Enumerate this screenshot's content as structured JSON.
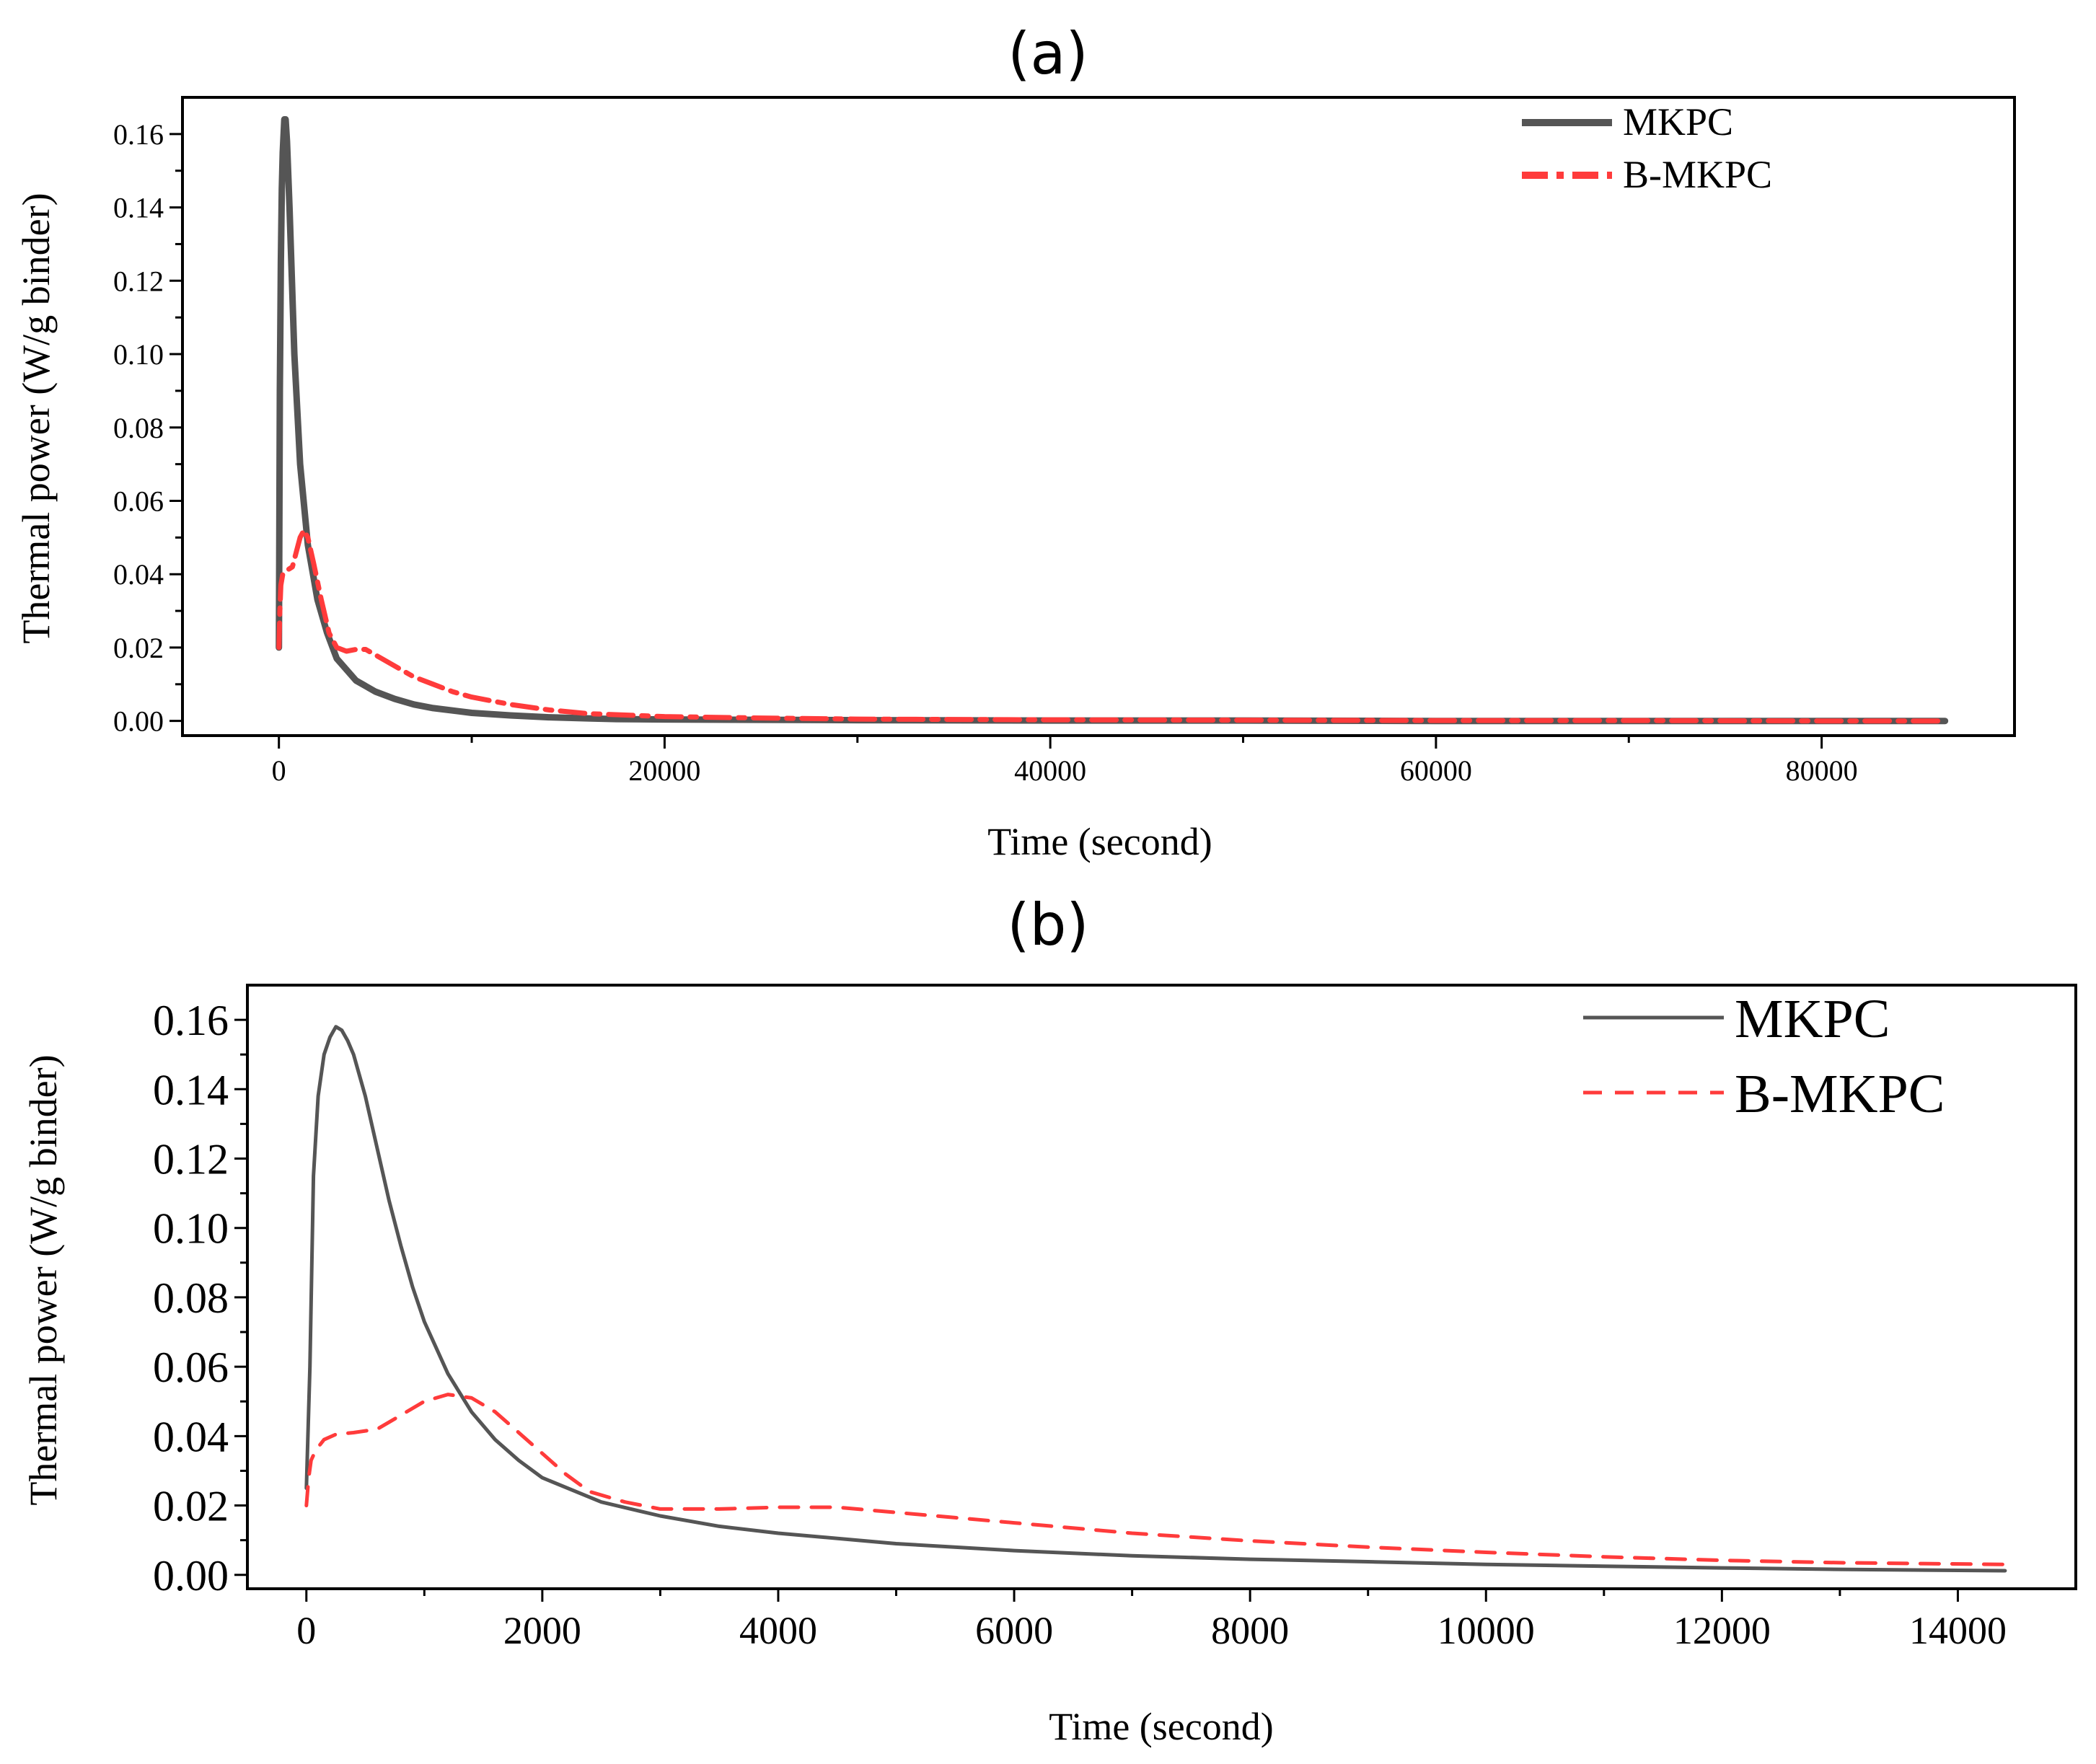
{
  "chart_data": [
    {
      "panel": "(a)",
      "type": "line",
      "title": "(a)",
      "xlabel": "Time (second)",
      "ylabel": "Thermal power (W/g binder)",
      "xlim": [
        -5000,
        90000
      ],
      "ylim": [
        -0.004,
        0.17
      ],
      "xticks": [
        0,
        20000,
        40000,
        60000,
        80000
      ],
      "xtick_labels": [
        "0",
        "20000",
        "40000",
        "60000",
        "80000"
      ],
      "yticks": [
        0.0,
        0.02,
        0.04,
        0.06,
        0.08,
        0.1,
        0.12,
        0.14,
        0.16
      ],
      "ytick_labels": [
        "0.00",
        "0.02",
        "0.04",
        "0.06",
        "0.08",
        "0.10",
        "0.12",
        "0.14",
        "0.16"
      ],
      "legend_position": "top-right",
      "grid": false,
      "series": [
        {
          "name": "MKPC",
          "color": "#555555",
          "style": "solid",
          "x": [
            0,
            50,
            100,
            150,
            200,
            280,
            350,
            420,
            550,
            800,
            1100,
            1500,
            2000,
            2500,
            3000,
            4000,
            5000,
            6000,
            7000,
            8000,
            10000,
            12000,
            14000,
            16000,
            17500,
            20000,
            25000,
            30000,
            40000,
            50000,
            60000,
            70000,
            80000,
            86400
          ],
          "y": [
            0.02,
            0.09,
            0.125,
            0.145,
            0.155,
            0.164,
            0.164,
            0.158,
            0.14,
            0.1,
            0.07,
            0.048,
            0.033,
            0.024,
            0.017,
            0.011,
            0.008,
            0.006,
            0.0045,
            0.0035,
            0.0022,
            0.0015,
            0.001,
            0.0007,
            0.0005,
            0.0004,
            0.0003,
            0.0002,
            0.0001,
            0.0001,
            0.0,
            0.0,
            0.0,
            0.0
          ]
        },
        {
          "name": "B-MKPC",
          "color": "#ff3b3b",
          "style": "dashdot",
          "x": [
            0,
            50,
            100,
            200,
            400,
            700,
            900,
            1100,
            1300,
            1500,
            1800,
            2200,
            2600,
            3000,
            3500,
            4000,
            4500,
            5000,
            6000,
            7000,
            8000,
            9000,
            10000,
            12000,
            14000,
            16000,
            20000,
            25000,
            30000,
            40000,
            50000,
            60000,
            70000,
            80000,
            86400
          ],
          "y": [
            0.02,
            0.03,
            0.037,
            0.04,
            0.041,
            0.042,
            0.046,
            0.05,
            0.052,
            0.05,
            0.043,
            0.033,
            0.024,
            0.02,
            0.019,
            0.0195,
            0.0195,
            0.018,
            0.015,
            0.012,
            0.01,
            0.008,
            0.0065,
            0.0045,
            0.003,
            0.002,
            0.0012,
            0.0008,
            0.0005,
            0.0003,
            0.0002,
            0.0001,
            0.0001,
            0.0,
            0.0
          ]
        }
      ]
    },
    {
      "panel": "(b)",
      "type": "line",
      "title": "(b)",
      "xlabel": "Time (second)",
      "ylabel": "Thermal power (W/g binder)",
      "xlim": [
        -500,
        15000
      ],
      "ylim": [
        -0.004,
        0.17
      ],
      "xticks": [
        0,
        2000,
        4000,
        6000,
        8000,
        10000,
        12000,
        14000
      ],
      "xtick_labels": [
        "0",
        "2000",
        "4000",
        "6000",
        "8000",
        "10000",
        "12000",
        "14000"
      ],
      "yticks": [
        0.0,
        0.02,
        0.04,
        0.06,
        0.08,
        0.1,
        0.12,
        0.14,
        0.16
      ],
      "ytick_labels": [
        "0.00",
        "0.02",
        "0.04",
        "0.06",
        "0.08",
        "0.10",
        "0.12",
        "0.14",
        "0.16"
      ],
      "legend_position": "top-right",
      "grid": false,
      "series": [
        {
          "name": "MKPC",
          "color": "#555555",
          "style": "solid",
          "x": [
            0,
            30,
            60,
            100,
            150,
            200,
            250,
            300,
            350,
            400,
            500,
            600,
            700,
            800,
            900,
            1000,
            1200,
            1400,
            1600,
            1800,
            2000,
            2500,
            3000,
            3500,
            4000,
            5000,
            6000,
            7000,
            8000,
            9000,
            10000,
            11000,
            12000,
            13000,
            14400
          ],
          "y": [
            0.025,
            0.06,
            0.115,
            0.138,
            0.15,
            0.155,
            0.158,
            0.157,
            0.154,
            0.15,
            0.138,
            0.123,
            0.108,
            0.095,
            0.083,
            0.073,
            0.058,
            0.047,
            0.039,
            0.033,
            0.028,
            0.021,
            0.017,
            0.014,
            0.012,
            0.009,
            0.007,
            0.0055,
            0.0045,
            0.0038,
            0.003,
            0.0025,
            0.002,
            0.0016,
            0.0012
          ]
        },
        {
          "name": "B-MKPC",
          "color": "#ff3b3b",
          "style": "dashed",
          "x": [
            0,
            20,
            40,
            80,
            150,
            250,
            400,
            600,
            800,
            1000,
            1200,
            1400,
            1600,
            1800,
            2000,
            2200,
            2400,
            2700,
            3000,
            3500,
            4000,
            4500,
            5000,
            5500,
            6000,
            7000,
            8000,
            9000,
            10000,
            11000,
            12000,
            13000,
            14400
          ],
          "y": [
            0.02,
            0.028,
            0.033,
            0.036,
            0.039,
            0.0405,
            0.041,
            0.042,
            0.046,
            0.05,
            0.052,
            0.051,
            0.047,
            0.041,
            0.035,
            0.029,
            0.024,
            0.021,
            0.019,
            0.019,
            0.0195,
            0.0195,
            0.018,
            0.0165,
            0.015,
            0.012,
            0.0098,
            0.008,
            0.0065,
            0.0052,
            0.0042,
            0.0035,
            0.003
          ]
        }
      ]
    }
  ]
}
